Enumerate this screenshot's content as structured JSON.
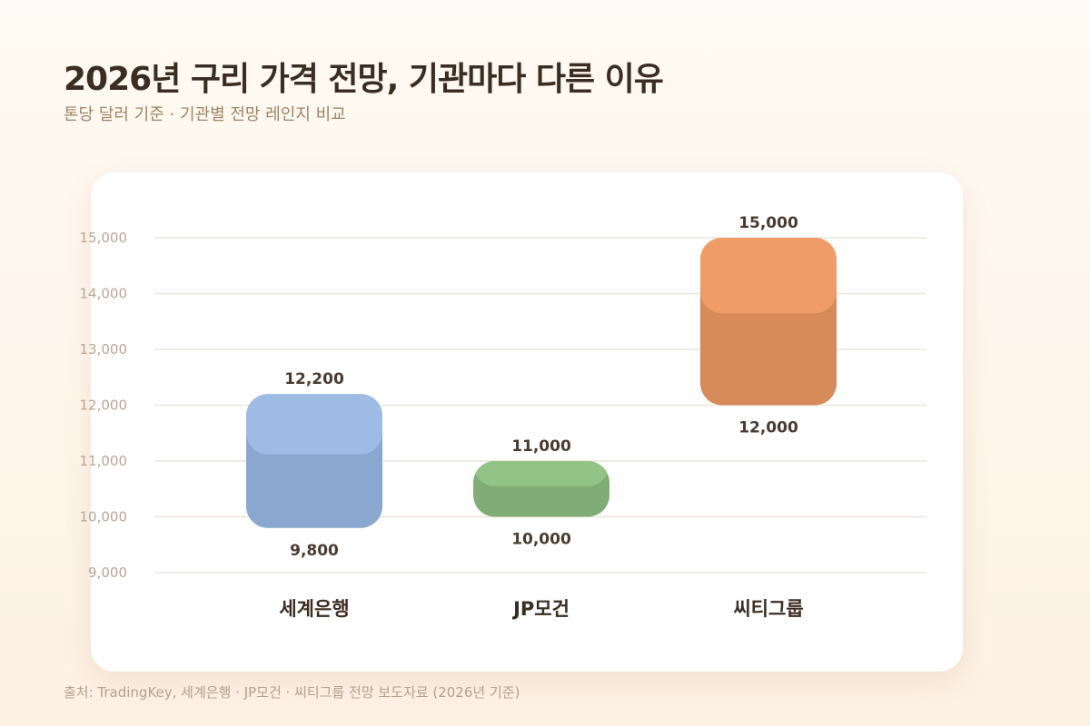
{
  "title": "2026년 구리 가격 전망, 기관마다 다른 이유",
  "subtitle": "톤당 달러 기준 · 기관별 전망 레인지 비교",
  "source": "출처: TradingKey, 세계은행 · JP모건 · 씨티그룹 전망 보도자료 (2026년 기준)",
  "chart_data": {
    "type": "bar",
    "subtype": "floating-range",
    "categories": [
      "세계은행",
      "JP모건",
      "씨티그룹"
    ],
    "series": [
      {
        "low": 9800,
        "high": 12200,
        "low_label": "9,800",
        "high_label": "12,200",
        "color_top": "#9dbbe5",
        "color_body": "#8aa7cf"
      },
      {
        "low": 10000,
        "high": 11000,
        "low_label": "10,000",
        "high_label": "11,000",
        "color_top": "#93c487",
        "color_body": "#80ad75"
      },
      {
        "low": 12000,
        "high": 15000,
        "low_label": "12,000",
        "high_label": "15,000",
        "color_top": "#f09c68",
        "color_body": "#d68b59"
      }
    ],
    "ylim": [
      9000,
      15000
    ],
    "yticks": [
      9000,
      10000,
      11000,
      12000,
      13000,
      14000,
      15000
    ],
    "ytick_labels": [
      "9,000",
      "10,000",
      "11,000",
      "12,000",
      "13,000",
      "14,000",
      "15,000"
    ],
    "grid": true,
    "legend": "none",
    "xlabel": "",
    "ylabel": ""
  }
}
